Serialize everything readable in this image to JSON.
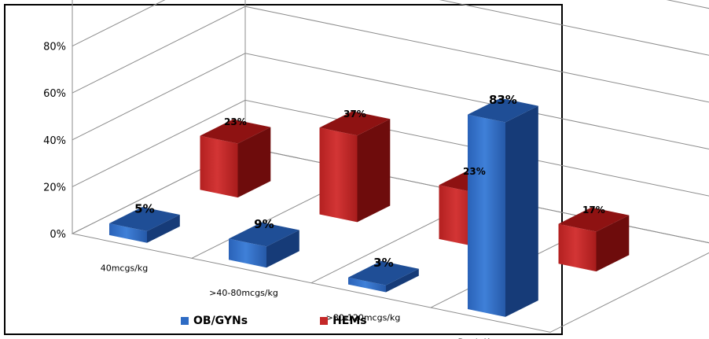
{
  "chart_data": {
    "type": "bar",
    "style": "3d-clustered",
    "categories": [
      "40mcgs/kg",
      ">40-80mcgs/kg",
      ">80-120mcgs/kg",
      "Don't Know"
    ],
    "series": [
      {
        "name": "OB/GYNs",
        "values": [
          5,
          9,
          3,
          83
        ],
        "labels": [
          "5%",
          "9%",
          "3%",
          "83%"
        ],
        "color": "#2E6BC4"
      },
      {
        "name": "HEMs",
        "values": [
          23,
          37,
          23,
          17
        ],
        "labels": [
          "23%",
          "37%",
          "23%",
          "17%"
        ],
        "color": "#C42828"
      }
    ],
    "yticks": [
      "0%",
      "20%",
      "40%",
      "60%",
      "80%"
    ],
    "ylim": [
      0,
      100
    ],
    "grid": true,
    "legend": "bottom"
  }
}
